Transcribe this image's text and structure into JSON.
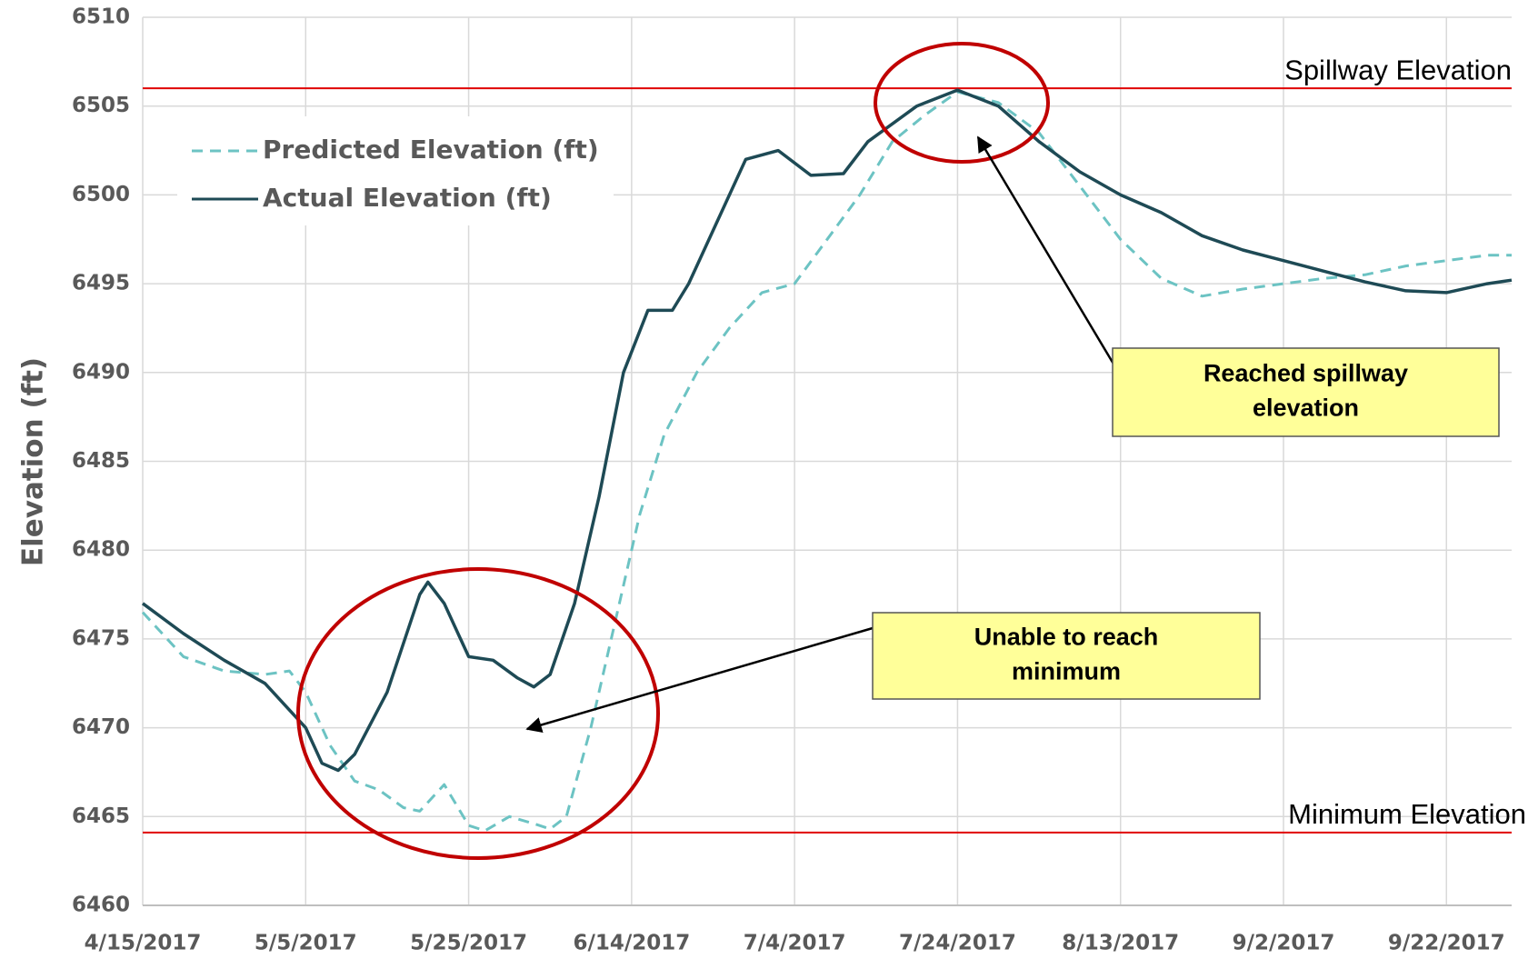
{
  "chart_data": {
    "type": "line",
    "y_label": "Elevation (ft)",
    "xlim": [
      "2017-04-15",
      "2017-09-30"
    ],
    "xticks": [
      {
        "value": "2017-04-15",
        "label": "4/15/2017"
      },
      {
        "value": "2017-05-05",
        "label": "5/5/2017"
      },
      {
        "value": "2017-05-25",
        "label": "5/25/2017"
      },
      {
        "value": "2017-06-14",
        "label": "6/14/2017"
      },
      {
        "value": "2017-07-04",
        "label": "7/4/2017"
      },
      {
        "value": "2017-07-24",
        "label": "7/24/2017"
      },
      {
        "value": "2017-08-13",
        "label": "8/13/2017"
      },
      {
        "value": "2017-09-02",
        "label": "9/2/2017"
      },
      {
        "value": "2017-09-22",
        "label": "9/22/2017"
      }
    ],
    "ylim": [
      6460,
      6510
    ],
    "yticks": [
      6460,
      6465,
      6470,
      6475,
      6480,
      6485,
      6490,
      6495,
      6500,
      6505,
      6510
    ],
    "grid": true,
    "legend": "upper left",
    "series": [
      {
        "name": "Predicted Elevation (ft)",
        "color": "#6cc3c3",
        "dashed": true,
        "x": [
          "2017-04-15",
          "2017-04-20",
          "2017-04-25",
          "2017-04-30",
          "2017-05-03",
          "2017-05-05",
          "2017-05-08",
          "2017-05-11",
          "2017-05-14",
          "2017-05-17",
          "2017-05-19",
          "2017-05-22",
          "2017-05-25",
          "2017-05-27",
          "2017-05-30",
          "2017-06-02",
          "2017-06-04",
          "2017-06-06",
          "2017-06-09",
          "2017-06-12",
          "2017-06-15",
          "2017-06-18",
          "2017-06-22",
          "2017-06-26",
          "2017-06-30",
          "2017-07-04",
          "2017-07-08",
          "2017-07-12",
          "2017-07-16",
          "2017-07-20",
          "2017-07-24",
          "2017-07-29",
          "2017-08-03",
          "2017-08-08",
          "2017-08-13",
          "2017-08-18",
          "2017-08-23",
          "2017-08-28",
          "2017-09-02",
          "2017-09-07",
          "2017-09-12",
          "2017-09-17",
          "2017-09-22",
          "2017-09-27",
          "2017-09-30"
        ],
        "values": [
          6476.5,
          6474,
          6473.2,
          6473,
          6473.2,
          6472,
          6469,
          6467,
          6466.5,
          6465.5,
          6465.3,
          6466.8,
          6464.5,
          6464.2,
          6465,
          6464.6,
          6464.3,
          6465,
          6470,
          6476,
          6482,
          6486.5,
          6490,
          6492.5,
          6494.5,
          6495,
          6497.5,
          6500,
          6503,
          6504.5,
          6505.8,
          6505.2,
          6503.5,
          6500.5,
          6497.5,
          6495.3,
          6494.3,
          6494.7,
          6495,
          6495.3,
          6495.5,
          6496,
          6496.3,
          6496.6,
          6496.6
        ]
      },
      {
        "name": "Actual Elevation (ft)",
        "color": "#1e4a55",
        "dashed": false,
        "x": [
          "2017-04-15",
          "2017-04-20",
          "2017-04-25",
          "2017-04-30",
          "2017-05-05",
          "2017-05-07",
          "2017-05-09",
          "2017-05-11",
          "2017-05-15",
          "2017-05-19",
          "2017-05-20",
          "2017-05-22",
          "2017-05-25",
          "2017-05-28",
          "2017-05-31",
          "2017-06-02",
          "2017-06-04",
          "2017-06-07",
          "2017-06-10",
          "2017-06-13",
          "2017-06-16",
          "2017-06-19",
          "2017-06-21",
          "2017-06-24",
          "2017-06-28",
          "2017-07-02",
          "2017-07-06",
          "2017-07-10",
          "2017-07-13",
          "2017-07-19",
          "2017-07-24",
          "2017-07-29",
          "2017-08-03",
          "2017-08-08",
          "2017-08-13",
          "2017-08-18",
          "2017-08-23",
          "2017-08-28",
          "2017-09-02",
          "2017-09-07",
          "2017-09-12",
          "2017-09-17",
          "2017-09-22",
          "2017-09-27",
          "2017-09-30"
        ],
        "values": [
          6477,
          6475.3,
          6473.8,
          6472.5,
          6470,
          6468,
          6467.6,
          6468.5,
          6472,
          6477.5,
          6478.2,
          6477,
          6474,
          6473.8,
          6472.8,
          6472.3,
          6473,
          6477,
          6483,
          6490,
          6493.5,
          6493.5,
          6495,
          6498,
          6502,
          6502.5,
          6501.1,
          6501.2,
          6503,
          6505,
          6505.9,
          6505,
          6503,
          6501.3,
          6500,
          6499,
          6497.7,
          6496.9,
          6496.3,
          6495.7,
          6495.1,
          6494.6,
          6494.5,
          6495,
          6495.2
        ]
      }
    ],
    "reference_lines": [
      {
        "label": "Spillway Elevation",
        "value": 6506,
        "color": "#e00000"
      },
      {
        "label": "Minimum Elevation",
        "value": 6464.1,
        "color": "#e00000"
      }
    ],
    "annotations": [
      {
        "lines": [
          "Unable to reach",
          "minimum"
        ]
      },
      {
        "lines": [
          "Reached spillway",
          "elevation"
        ]
      }
    ]
  }
}
